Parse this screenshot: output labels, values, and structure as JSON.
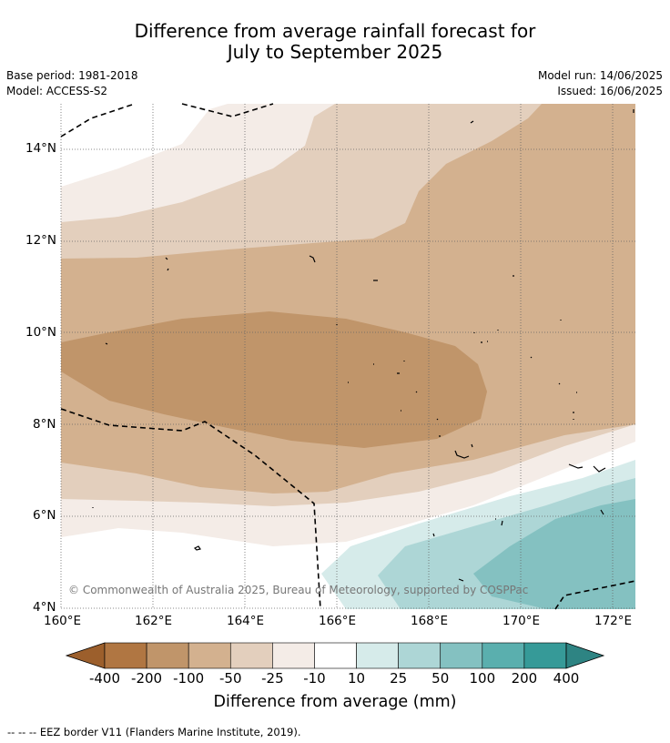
{
  "title_line1": "Difference from average rainfall forecast for",
  "title_line2": "July to September 2025",
  "meta": {
    "base_period": "Base period: 1981-2018",
    "model": "Model: ACCESS-S2",
    "model_run": "Model run: 14/06/2025",
    "issued": "Issued: 16/06/2025"
  },
  "map": {
    "lon_labels": [
      "160°E",
      "162°E",
      "164°E",
      "166°E",
      "168°E",
      "170°E",
      "172°E"
    ],
    "lat_labels": [
      "14°N",
      "12°N",
      "10°N",
      "8°N",
      "6°N",
      "4°N"
    ],
    "copyright": "© Commonwealth of Australia 2025, Bureau of Meteorology, supported by COSPPac"
  },
  "colorbar": {
    "title": "Difference from average (mm)",
    "labels": [
      "-400",
      "-200",
      "-100",
      "-50",
      "-25",
      "-10",
      "10",
      "25",
      "50",
      "100",
      "200",
      "400"
    ],
    "colors": [
      "#9c5f2c",
      "#b07642",
      "#c0956a",
      "#d3b18f",
      "#e3cfbd",
      "#f4ece7",
      "#ffffff",
      "#d6ebea",
      "#add6d6",
      "#84c1c1",
      "#5aafae",
      "#369a98",
      "#2e8483"
    ]
  },
  "footer": "--  --  -- EEZ border V11 (Flanders Marine Institute, 2019)."
}
